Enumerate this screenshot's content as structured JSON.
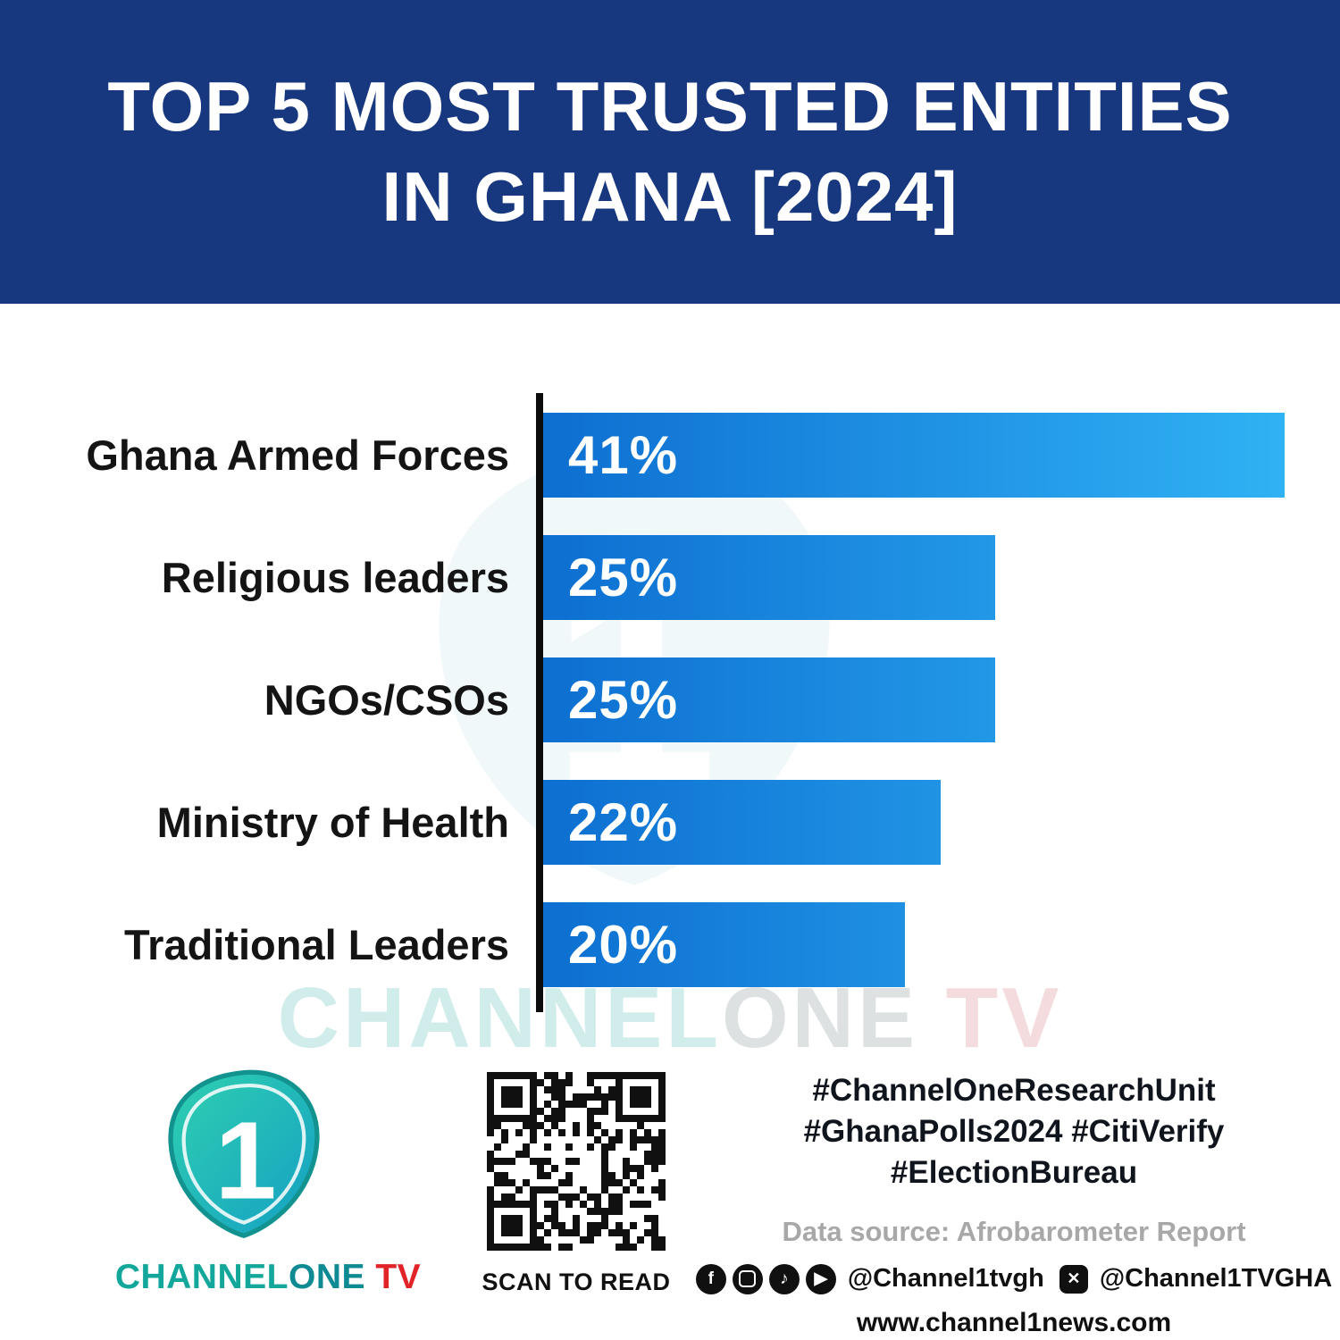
{
  "header": {
    "title_line1": "TOP 5 MOST TRUSTED ENTITIES",
    "title_line2": "IN GHANA [2024]",
    "bg_color": "#17377f"
  },
  "chart_data": {
    "type": "bar",
    "orientation": "horizontal",
    "title": "TOP 5 MOST TRUSTED ENTITIES IN GHANA [2024]",
    "categories": [
      "Ghana Armed Forces",
      "Religious leaders",
      "NGOs/CSOs",
      "Ministry of Health",
      "Traditional Leaders"
    ],
    "values": [
      41,
      25,
      25,
      22,
      20
    ],
    "value_labels": [
      "41%",
      "25%",
      "25%",
      "22%",
      "20%"
    ],
    "xlabel": "",
    "ylabel": "",
    "xlim": [
      0,
      41
    ],
    "grid": false,
    "legend": false,
    "bar_color_start": "#0d6fd1",
    "bar_color_end": "#30b2f4",
    "axis_color": "#0c0c0c"
  },
  "watermark": {
    "channel": "CHANNEL",
    "one": "ONE",
    "tv": " TV"
  },
  "footer": {
    "brand": {
      "channel": "CHANNEL",
      "one": "ONE",
      "tv": " TV",
      "teal": "#13a79b",
      "red": "#e02428"
    },
    "qr_caption": "SCAN TO READ",
    "hashtag_line1": "#ChannelOneResearchUnit",
    "hashtag_line2": "#GhanaPolls2024 #CitiVerify",
    "hashtag_line3": "#ElectionBureau",
    "data_source": "Data source: Afrobarometer Report",
    "social_handle1": "@Channel1tvgh",
    "social_handle2": "@Channel1TVGHA",
    "website": "www.channel1news.com"
  }
}
